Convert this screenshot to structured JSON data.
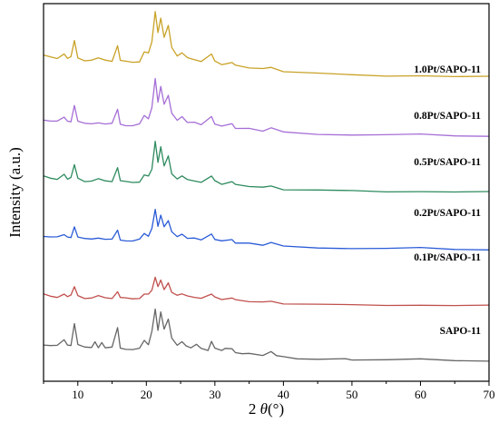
{
  "chart_data": {
    "type": "line",
    "title": "",
    "xlabel_prefix": "2 ",
    "xlabel_symbol": "θ",
    "xlabel_suffix": "(°)",
    "ylabel": "Intensity (a.u.)",
    "xlim": [
      5,
      70
    ],
    "x_ticks": [
      10,
      20,
      30,
      40,
      50,
      60,
      70
    ],
    "y_ticks_shown": false,
    "grid": false,
    "legend": "inline-labels-right",
    "series": [
      {
        "name": "SAPO-11",
        "color": "#666666",
        "baseline": 0.0,
        "points": [
          [
            5,
            0.36
          ],
          [
            6,
            0.34
          ],
          [
            7,
            0.33
          ],
          [
            8,
            0.44
          ],
          [
            8.5,
            0.34
          ],
          [
            9,
            0.35
          ],
          [
            9.5,
            0.72
          ],
          [
            10,
            0.36
          ],
          [
            11,
            0.3
          ],
          [
            12,
            0.3
          ],
          [
            12.5,
            0.4
          ],
          [
            13,
            0.31
          ],
          [
            13.5,
            0.38
          ],
          [
            14,
            0.3
          ],
          [
            15,
            0.3
          ],
          [
            15.8,
            0.66
          ],
          [
            16.2,
            0.3
          ],
          [
            17,
            0.28
          ],
          [
            18,
            0.27
          ],
          [
            19,
            0.28
          ],
          [
            19.7,
            0.42
          ],
          [
            20.3,
            0.36
          ],
          [
            20.8,
            0.58
          ],
          [
            21.3,
            1.0
          ],
          [
            21.7,
            0.62
          ],
          [
            22.1,
            0.95
          ],
          [
            22.6,
            0.62
          ],
          [
            23.2,
            0.82
          ],
          [
            23.7,
            0.46
          ],
          [
            24.5,
            0.34
          ],
          [
            25.2,
            0.4
          ],
          [
            25.8,
            0.33
          ],
          [
            26.5,
            0.3
          ],
          [
            27.3,
            0.35
          ],
          [
            28,
            0.28
          ],
          [
            29,
            0.26
          ],
          [
            29.5,
            0.4
          ],
          [
            30,
            0.3
          ],
          [
            31,
            0.24
          ],
          [
            31.5,
            0.3
          ],
          [
            32.5,
            0.28
          ],
          [
            33,
            0.22
          ],
          [
            34,
            0.2
          ],
          [
            35,
            0.19
          ],
          [
            37,
            0.17
          ],
          [
            38.2,
            0.22
          ],
          [
            39,
            0.15
          ],
          [
            40,
            0.13
          ],
          [
            42,
            0.11
          ],
          [
            45,
            0.1
          ],
          [
            49,
            0.11
          ],
          [
            50,
            0.09
          ],
          [
            55,
            0.08
          ],
          [
            60,
            0.09
          ],
          [
            65,
            0.07
          ],
          [
            70,
            0.07
          ]
        ]
      },
      {
        "name": "0.1Pt/SAPO-11",
        "color": "#c0504d",
        "baseline": 1.0,
        "points": [
          [
            5,
            0.25
          ],
          [
            6,
            0.22
          ],
          [
            7,
            0.21
          ],
          [
            8,
            0.26
          ],
          [
            8.5,
            0.22
          ],
          [
            9,
            0.23
          ],
          [
            9.5,
            0.4
          ],
          [
            10,
            0.23
          ],
          [
            11,
            0.19
          ],
          [
            12,
            0.19
          ],
          [
            13,
            0.22
          ],
          [
            14,
            0.19
          ],
          [
            15,
            0.19
          ],
          [
            15.8,
            0.3
          ],
          [
            16.2,
            0.19
          ],
          [
            17,
            0.18
          ],
          [
            18,
            0.17
          ],
          [
            19,
            0.19
          ],
          [
            19.7,
            0.27
          ],
          [
            20.3,
            0.25
          ],
          [
            20.8,
            0.34
          ],
          [
            21.3,
            0.55
          ],
          [
            21.7,
            0.38
          ],
          [
            22.1,
            0.5
          ],
          [
            22.6,
            0.35
          ],
          [
            23.2,
            0.45
          ],
          [
            23.7,
            0.3
          ],
          [
            24.5,
            0.24
          ],
          [
            25.2,
            0.27
          ],
          [
            26,
            0.22
          ],
          [
            27,
            0.21
          ],
          [
            28,
            0.19
          ],
          [
            29.5,
            0.27
          ],
          [
            30,
            0.2
          ],
          [
            31,
            0.17
          ],
          [
            32.5,
            0.19
          ],
          [
            33,
            0.15
          ],
          [
            35,
            0.13
          ],
          [
            37,
            0.11
          ],
          [
            38.2,
            0.14
          ],
          [
            40,
            0.09
          ],
          [
            45,
            0.07
          ],
          [
            50,
            0.06
          ],
          [
            55,
            0.06
          ],
          [
            60,
            0.07
          ],
          [
            65,
            0.05
          ],
          [
            70,
            0.05
          ]
        ]
      },
      {
        "name": "0.2Pt/SAPO-11",
        "color": "#2a5bd7",
        "baseline": 2.0,
        "points": [
          [
            5,
            0.3
          ],
          [
            6,
            0.28
          ],
          [
            7,
            0.27
          ],
          [
            8,
            0.32
          ],
          [
            8.5,
            0.27
          ],
          [
            9,
            0.28
          ],
          [
            9.5,
            0.45
          ],
          [
            10,
            0.28
          ],
          [
            11,
            0.24
          ],
          [
            12,
            0.24
          ],
          [
            13,
            0.27
          ],
          [
            14,
            0.24
          ],
          [
            15,
            0.23
          ],
          [
            15.8,
            0.4
          ],
          [
            16.2,
            0.23
          ],
          [
            17,
            0.22
          ],
          [
            18,
            0.21
          ],
          [
            19,
            0.23
          ],
          [
            19.7,
            0.33
          ],
          [
            20.3,
            0.3
          ],
          [
            20.8,
            0.42
          ],
          [
            21.3,
            0.78
          ],
          [
            21.7,
            0.48
          ],
          [
            22.1,
            0.68
          ],
          [
            22.6,
            0.45
          ],
          [
            23.2,
            0.58
          ],
          [
            23.7,
            0.36
          ],
          [
            24.5,
            0.28
          ],
          [
            25.2,
            0.32
          ],
          [
            26,
            0.26
          ],
          [
            27,
            0.25
          ],
          [
            28,
            0.22
          ],
          [
            29.5,
            0.32
          ],
          [
            30,
            0.24
          ],
          [
            31,
            0.2
          ],
          [
            32.5,
            0.23
          ],
          [
            33,
            0.18
          ],
          [
            35,
            0.16
          ],
          [
            37,
            0.14
          ],
          [
            38.2,
            0.17
          ],
          [
            40,
            0.11
          ],
          [
            45,
            0.09
          ],
          [
            50,
            0.08
          ],
          [
            55,
            0.07
          ],
          [
            60,
            0.08
          ],
          [
            65,
            0.06
          ],
          [
            70,
            0.06
          ]
        ]
      },
      {
        "name": "0.5Pt/SAPO-11",
        "color": "#2e8b5e",
        "baseline": 3.0,
        "points": [
          [
            5,
            0.36
          ],
          [
            6,
            0.33
          ],
          [
            7,
            0.32
          ],
          [
            8,
            0.4
          ],
          [
            8.5,
            0.32
          ],
          [
            9,
            0.33
          ],
          [
            9.5,
            0.58
          ],
          [
            10,
            0.33
          ],
          [
            11,
            0.28
          ],
          [
            12,
            0.28
          ],
          [
            13,
            0.31
          ],
          [
            14,
            0.28
          ],
          [
            15,
            0.28
          ],
          [
            15.8,
            0.52
          ],
          [
            16.2,
            0.28
          ],
          [
            17,
            0.26
          ],
          [
            18,
            0.25
          ],
          [
            19,
            0.27
          ],
          [
            19.7,
            0.4
          ],
          [
            20.3,
            0.36
          ],
          [
            20.8,
            0.5
          ],
          [
            21.3,
            0.98
          ],
          [
            21.7,
            0.6
          ],
          [
            22.1,
            0.88
          ],
          [
            22.6,
            0.56
          ],
          [
            23.2,
            0.72
          ],
          [
            23.7,
            0.42
          ],
          [
            24.5,
            0.32
          ],
          [
            25.2,
            0.38
          ],
          [
            26,
            0.3
          ],
          [
            27,
            0.29
          ],
          [
            28,
            0.26
          ],
          [
            29.5,
            0.38
          ],
          [
            30,
            0.28
          ],
          [
            31,
            0.23
          ],
          [
            32.5,
            0.27
          ],
          [
            33,
            0.21
          ],
          [
            35,
            0.19
          ],
          [
            37,
            0.16
          ],
          [
            38.2,
            0.2
          ],
          [
            40,
            0.13
          ],
          [
            45,
            0.11
          ],
          [
            50,
            0.1
          ],
          [
            55,
            0.09
          ],
          [
            60,
            0.1
          ],
          [
            65,
            0.08
          ],
          [
            70,
            0.08
          ]
        ]
      },
      {
        "name": "0.8Pt/SAPO-11",
        "color": "#a66fd6",
        "baseline": 4.0,
        "points": [
          [
            5,
            0.38
          ],
          [
            6,
            0.35
          ],
          [
            7,
            0.34
          ],
          [
            8,
            0.42
          ],
          [
            8.5,
            0.34
          ],
          [
            9,
            0.35
          ],
          [
            9.5,
            0.62
          ],
          [
            10,
            0.35
          ],
          [
            11,
            0.3
          ],
          [
            12,
            0.3
          ],
          [
            13,
            0.33
          ],
          [
            14,
            0.3
          ],
          [
            15,
            0.3
          ],
          [
            15.8,
            0.56
          ],
          [
            16.2,
            0.3
          ],
          [
            17,
            0.28
          ],
          [
            18,
            0.27
          ],
          [
            19,
            0.29
          ],
          [
            19.7,
            0.44
          ],
          [
            20.3,
            0.4
          ],
          [
            20.8,
            0.58
          ],
          [
            21.3,
            1.12
          ],
          [
            21.7,
            0.7
          ],
          [
            22.1,
            0.98
          ],
          [
            22.6,
            0.64
          ],
          [
            23.2,
            0.82
          ],
          [
            23.7,
            0.48
          ],
          [
            24.5,
            0.36
          ],
          [
            25.2,
            0.42
          ],
          [
            26,
            0.33
          ],
          [
            27,
            0.32
          ],
          [
            28,
            0.28
          ],
          [
            29.5,
            0.42
          ],
          [
            30,
            0.3
          ],
          [
            31,
            0.25
          ],
          [
            32.5,
            0.3
          ],
          [
            33,
            0.23
          ],
          [
            35,
            0.21
          ],
          [
            37,
            0.18
          ],
          [
            38.2,
            0.22
          ],
          [
            40,
            0.15
          ],
          [
            45,
            0.12
          ],
          [
            50,
            0.11
          ],
          [
            55,
            0.1
          ],
          [
            60,
            0.11
          ],
          [
            65,
            0.09
          ],
          [
            70,
            0.09
          ]
        ]
      },
      {
        "name": "1.0Pt/SAPO-11",
        "color": "#c9a227",
        "baseline": 5.0,
        "points": [
          [
            5,
            0.52
          ],
          [
            6,
            0.5
          ],
          [
            7,
            0.48
          ],
          [
            8,
            0.55
          ],
          [
            8.5,
            0.48
          ],
          [
            9,
            0.49
          ],
          [
            9.5,
            0.8
          ],
          [
            10,
            0.48
          ],
          [
            11,
            0.44
          ],
          [
            12,
            0.44
          ],
          [
            13,
            0.47
          ],
          [
            14,
            0.44
          ],
          [
            15,
            0.43
          ],
          [
            15.8,
            0.7
          ],
          [
            16.2,
            0.43
          ],
          [
            17,
            0.41
          ],
          [
            18,
            0.4
          ],
          [
            19,
            0.42
          ],
          [
            19.7,
            0.6
          ],
          [
            20.3,
            0.56
          ],
          [
            20.8,
            0.78
          ],
          [
            21.3,
            1.3
          ],
          [
            21.7,
            0.92
          ],
          [
            22.1,
            1.18
          ],
          [
            22.6,
            0.86
          ],
          [
            23.2,
            1.05
          ],
          [
            23.7,
            0.68
          ],
          [
            24.5,
            0.52
          ],
          [
            25.2,
            0.58
          ],
          [
            26,
            0.48
          ],
          [
            27,
            0.46
          ],
          [
            28,
            0.42
          ],
          [
            29.5,
            0.56
          ],
          [
            30,
            0.42
          ],
          [
            31,
            0.37
          ],
          [
            32.5,
            0.4
          ],
          [
            33,
            0.34
          ],
          [
            35,
            0.31
          ],
          [
            37,
            0.28
          ],
          [
            38.2,
            0.32
          ],
          [
            40,
            0.24
          ],
          [
            45,
            0.2
          ],
          [
            50,
            0.17
          ],
          [
            55,
            0.16
          ],
          [
            60,
            0.17
          ],
          [
            65,
            0.14
          ],
          [
            70,
            0.14
          ]
        ]
      }
    ]
  }
}
